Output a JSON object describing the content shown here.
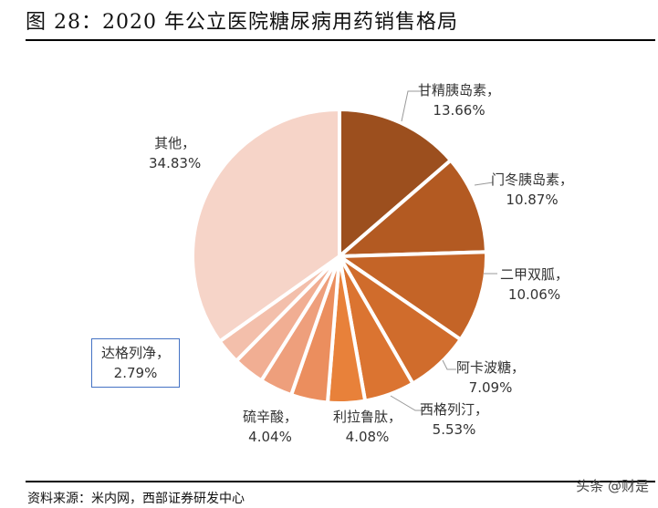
{
  "title": "图 28：2020 年公立医院糖尿病用药销售格局",
  "source": "资料来源：米内网，西部证券研发中心",
  "watermark": "头条 @财是",
  "chart_data": {
    "type": "pie",
    "title": "图 28：2020 年公立医院糖尿病用药销售格局",
    "start": "12 o'clock, clockwise",
    "slices": [
      {
        "name": "甘精胰岛素，",
        "value": 13.66,
        "label": "13.66%",
        "color": "#9C4F1E"
      },
      {
        "name": "门冬胰岛素，",
        "value": 10.87,
        "label": "10.87%",
        "color": "#B35A22"
      },
      {
        "name": "二甲双胍，",
        "value": 10.06,
        "label": "10.06%",
        "color": "#C46427"
      },
      {
        "name": "阿卡波糖，",
        "value": 7.09,
        "label": "7.09%",
        "color": "#D06C2C"
      },
      {
        "name": "西格列汀，",
        "value": 5.53,
        "label": "5.53%",
        "color": "#DB7431"
      },
      {
        "name": "利拉鲁肽，",
        "value": 4.08,
        "label": "4.08%",
        "color": "#E8813A"
      },
      {
        "name": "硫辛酸，",
        "value": 4.04,
        "label": "4.04%",
        "color": "#EB8E5E"
      },
      {
        "name": "",
        "value": 3.6,
        "label": "",
        "color": "#EE9F7C"
      },
      {
        "name": "",
        "value": 3.45,
        "label": "",
        "color": "#F1AE93"
      },
      {
        "name": "达格列净，",
        "value": 2.79,
        "label": "2.79%",
        "color": "#F3BFAB"
      },
      {
        "name": "其他，",
        "value": 34.83,
        "label": "34.83%",
        "color": "#F6D4C8"
      }
    ]
  }
}
